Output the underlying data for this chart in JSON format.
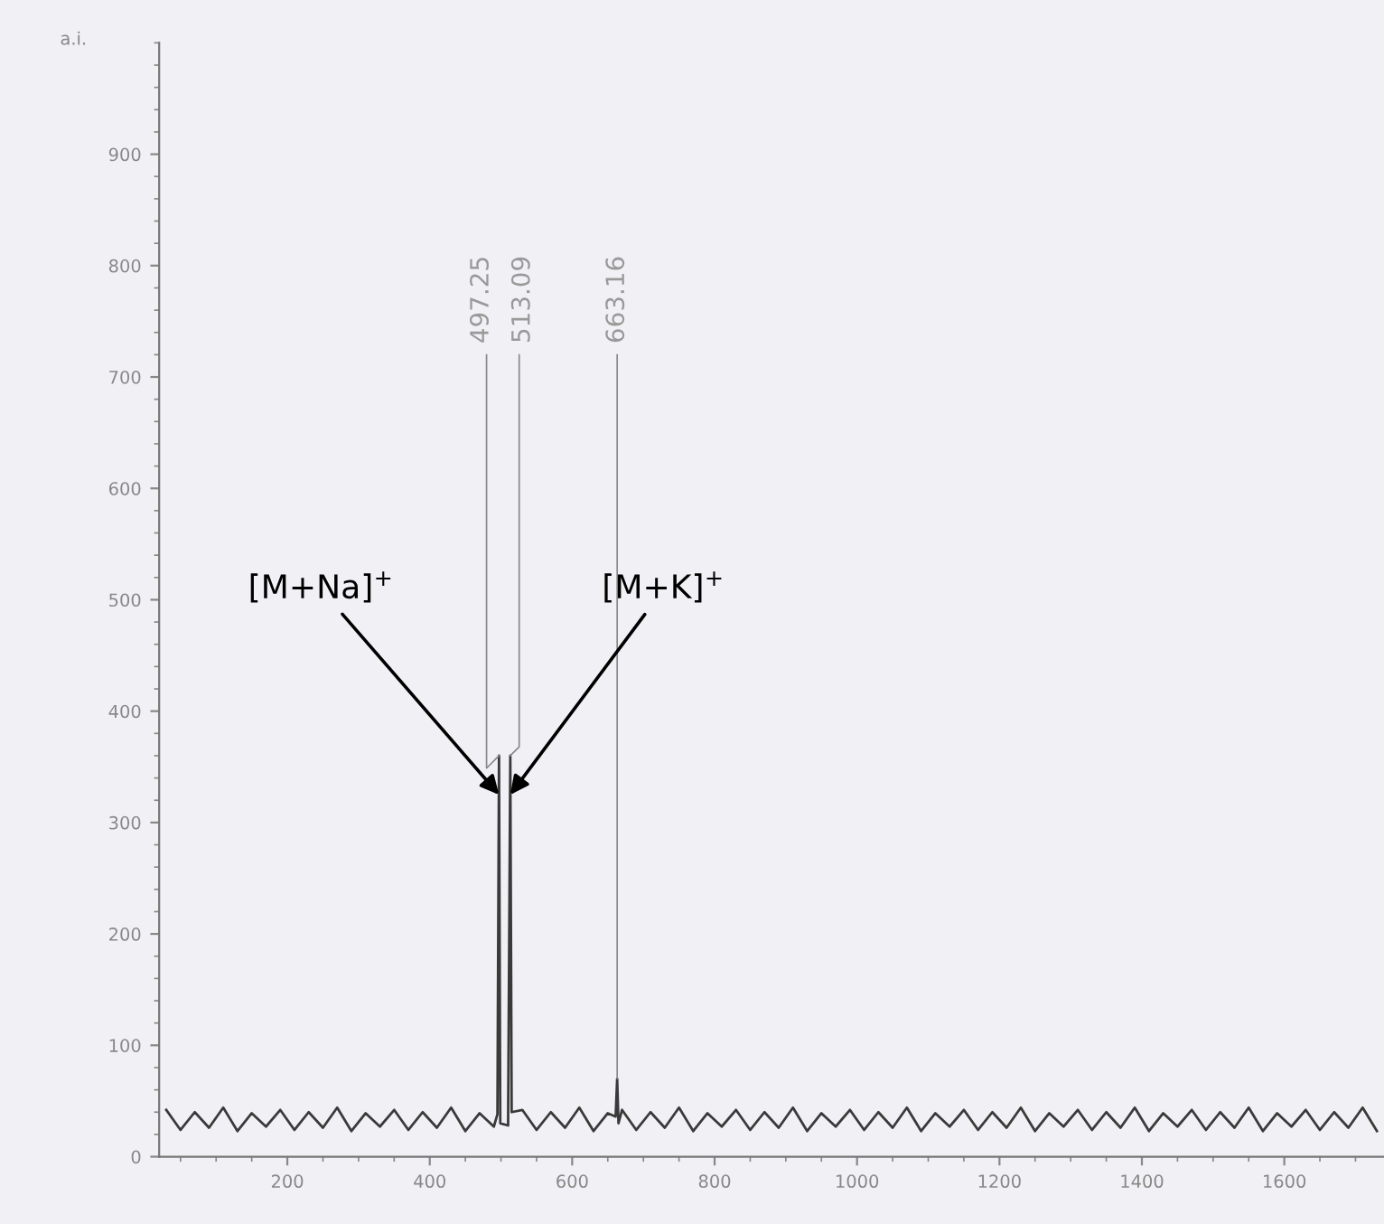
{
  "chart_data": {
    "type": "line",
    "ylabel": "a.i.",
    "color": "#3a3a3a",
    "x": [
      30,
      50,
      70,
      90,
      110,
      130,
      150,
      170,
      190,
      210,
      230,
      250,
      270,
      290,
      310,
      330,
      350,
      370,
      390,
      410,
      430,
      450,
      470,
      490,
      495,
      497.25,
      499,
      510,
      513.09,
      515,
      530,
      550,
      570,
      590,
      610,
      630,
      650,
      661,
      663.16,
      665,
      670,
      690,
      710,
      730,
      750,
      770,
      790,
      810,
      830,
      850,
      870,
      890,
      910,
      930,
      950,
      970,
      990,
      1010,
      1030,
      1050,
      1070,
      1090,
      1110,
      1130,
      1150,
      1170,
      1190,
      1210,
      1230,
      1250,
      1270,
      1290,
      1310,
      1330,
      1350,
      1370,
      1390,
      1410,
      1430,
      1450,
      1470,
      1490,
      1510,
      1530,
      1550,
      1570,
      1590,
      1610,
      1630,
      1650,
      1670,
      1690,
      1710,
      1730
    ],
    "values": [
      42,
      24,
      40,
      26,
      44,
      23,
      39,
      27,
      42,
      24,
      40,
      26,
      44,
      23,
      39,
      27,
      42,
      24,
      40,
      26,
      44,
      23,
      39,
      27,
      38,
      360,
      30,
      28,
      360,
      40,
      42,
      24,
      40,
      26,
      44,
      23,
      39,
      36,
      70,
      30,
      42,
      24,
      40,
      26,
      44,
      23,
      39,
      27,
      42,
      24,
      40,
      26,
      44,
      23,
      39,
      27,
      42,
      24,
      40,
      26,
      44,
      23,
      39,
      27,
      42,
      24,
      40,
      26,
      44,
      23,
      39,
      27,
      42,
      24,
      40,
      26,
      44,
      23,
      39,
      27,
      42,
      24,
      40,
      26,
      44,
      23,
      39,
      27,
      42,
      24,
      40,
      26,
      44,
      23
    ],
    "xlim": [
      20,
      1740
    ],
    "ylim": [
      0,
      1000
    ],
    "xticks": [
      200,
      400,
      600,
      800,
      1000,
      1200,
      1400,
      1600
    ],
    "yticks": [
      0,
      100,
      200,
      300,
      400,
      500,
      600,
      700,
      800,
      900
    ],
    "grid": false,
    "marker": "none",
    "line_style": "solid",
    "annotations": [
      {
        "text": "497.25",
        "x": 497.25,
        "y": 360
      },
      {
        "text": "513.09",
        "x": 513.09,
        "y": 360
      },
      {
        "text": "663.16",
        "x": 663.16,
        "y": 70
      },
      {
        "text": "[M+Na]$^{+}$",
        "x": 497.25,
        "y": 325
      },
      {
        "text": "[M+K]$^{+}$",
        "x": 513.09,
        "y": 325
      }
    ]
  }
}
